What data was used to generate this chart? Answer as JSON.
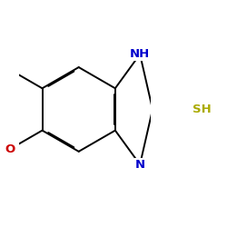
{
  "background_color": "#ffffff",
  "bond_color": "#000000",
  "atom_colors": {
    "O": "#cc0000",
    "N": "#0000cc",
    "S": "#aaaa00",
    "C": "#000000",
    "H": "#000000"
  },
  "figsize": [
    2.5,
    2.5
  ],
  "dpi": 100,
  "bond_lw": 1.4,
  "font_size": 9.5
}
